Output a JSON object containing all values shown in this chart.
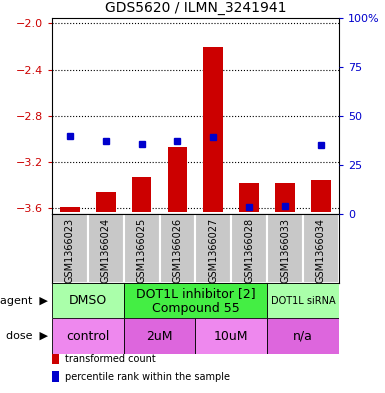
{
  "title": "GDS5620 / ILMN_3241941",
  "samples": [
    "GSM1366023",
    "GSM1366024",
    "GSM1366025",
    "GSM1366026",
    "GSM1366027",
    "GSM1366028",
    "GSM1366033",
    "GSM1366034"
  ],
  "bar_tops": [
    -3.59,
    -3.46,
    -3.33,
    -3.07,
    -2.2,
    -3.38,
    -3.38,
    -3.35
  ],
  "bar_bottom": -3.63,
  "blue_y": [
    -2.97,
    -3.02,
    -3.04,
    -3.02,
    -2.98,
    -3.59,
    -3.58,
    -3.05
  ],
  "ylim_left": [
    -3.65,
    -1.95
  ],
  "yticks_left": [
    -3.6,
    -3.2,
    -2.8,
    -2.4,
    -2.0
  ],
  "yticks_right": [
    0,
    25,
    50,
    75,
    100
  ],
  "left_color": "#cc0000",
  "right_color": "#0000cc",
  "bar_color": "#cc0000",
  "blue_color": "#0000cc",
  "sample_bg": "#c8c8c8",
  "agent_groups": [
    {
      "label": "DMSO",
      "start": 0,
      "end": 2,
      "color": "#aaffaa",
      "fontsize": 9
    },
    {
      "label": "DOT1L inhibitor [2]\nCompound 55",
      "start": 2,
      "end": 6,
      "color": "#44ee44",
      "fontsize": 9
    },
    {
      "label": "DOT1L siRNA",
      "start": 6,
      "end": 8,
      "color": "#aaffaa",
      "fontsize": 7
    }
  ],
  "dose_groups": [
    {
      "label": "control",
      "start": 0,
      "end": 2,
      "color": "#ee88ee"
    },
    {
      "label": "2uM",
      "start": 2,
      "end": 4,
      "color": "#dd66dd"
    },
    {
      "label": "10uM",
      "start": 4,
      "end": 6,
      "color": "#ee88ee"
    },
    {
      "label": "n/a",
      "start": 6,
      "end": 8,
      "color": "#dd66dd"
    }
  ],
  "legend_items": [
    {
      "label": "transformed count",
      "color": "#cc0000"
    },
    {
      "label": "percentile rank within the sample",
      "color": "#0000cc"
    }
  ]
}
